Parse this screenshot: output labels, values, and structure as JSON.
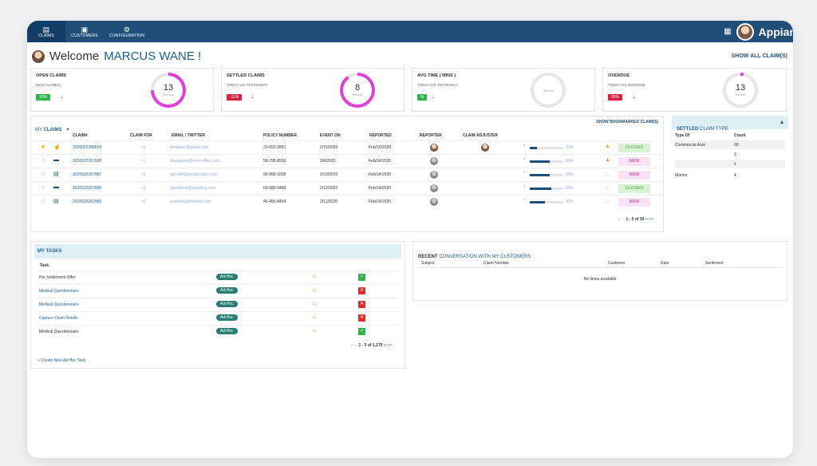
{
  "nav": {
    "tabs": [
      {
        "label": "CLAIMS",
        "icon": "claims-icon"
      },
      {
        "label": "CUSTOMERS",
        "icon": "customers-icon"
      },
      {
        "label": "CONFIGURATION",
        "icon": "configuration-icon"
      }
    ],
    "brand": "Appian"
  },
  "header": {
    "welcome": "Welcome",
    "user_name": "MARCUS WANE !",
    "show_all": "SHOW ALL CLAIM(S)"
  },
  "kpis": [
    {
      "title": "OPEN CLAIMS",
      "subtitle": "NEW CLAIM(S)",
      "badge": "10%",
      "badge_color": "green",
      "trend": "down",
      "value": "13",
      "unit": "Record",
      "ring_pct": 75,
      "ring_color": "#e040d8"
    },
    {
      "title": "SETTLED CLAIMS",
      "subtitle": "TODAY V/S YESTERDAY",
      "badge": "-11%",
      "badge_color": "red",
      "trend": "down",
      "value": "8",
      "unit": "Record",
      "ring_pct": 90,
      "ring_color": "#e040d8"
    },
    {
      "title": "AVG TIME ( MINS )",
      "subtitle": "TODAY V/S YESTERDAY",
      "badge": "%",
      "badge_color": "green",
      "trend": "down",
      "value": "",
      "unit": "Record",
      "ring_pct": 0,
      "ring_color": "#e040d8"
    },
    {
      "title": "OVERDUE",
      "subtitle": "TODAY V/S OVERDUE",
      "badge": "96%",
      "badge_color": "red",
      "trend": "down",
      "value": "13",
      "unit": "Record",
      "ring_pct": 3,
      "ring_color": "#e040d8"
    }
  ],
  "my_claims": {
    "title_prefix": "MY ",
    "title": "CLAIMS",
    "bookmarked_link": "SHOW BOOKMARKED CLAIM(S)",
    "columns": [
      "CLAIM#",
      "CLAIM FOR",
      "EMAIL / TWITTER",
      "POLICY NUMBER",
      "EVENT ON",
      "REPORTED",
      "REPORTER",
      "CLAIM ADJUSTER"
    ],
    "rows": [
      {
        "claim": "2020022288828",
        "claim_for": "+1",
        "email": "beejamin@gmail.com",
        "policy": "23-053-2891",
        "event_on": "2/15/2020",
        "reported": "Feb/15/2020",
        "progress": 22,
        "pct": "22%",
        "status": "CLOSED",
        "warn": true,
        "bookmarked": true
      },
      {
        "claim": "2020022267998",
        "claim_for": "+1",
        "email": "dasajamin@rosecoffee.com",
        "policy": "58-798-8566",
        "event_on": "2/8/2020",
        "reported": "Feb/14/2020",
        "progress": 60,
        "pct": "60%",
        "status": "NEW",
        "warn": true,
        "bookmarked": false
      },
      {
        "claim": "2020022267987",
        "claim_for": "+1",
        "email": "gacodel@bestproduct.com",
        "policy": "90-958-3298",
        "event_on": "2/10/2020",
        "reported": "Feb/14/2020",
        "progress": 60,
        "pct": "60%",
        "status": "NEW",
        "warn": false,
        "bookmarked": false
      },
      {
        "claim": "2020022267986",
        "claim_for": "+1",
        "email": "dauidlavel@amazing.com",
        "policy": "63-680-9468",
        "event_on": "2/12/2020",
        "reported": "Feb/14/2020",
        "progress": 65,
        "pct": "65%",
        "status": "CLOSED",
        "warn": false,
        "bookmarked": false
      },
      {
        "claim": "2020022267983",
        "claim_for": "+1",
        "email": "coasterly@hotmail.com",
        "policy": "46-455-8454",
        "event_on": "2/11/2020",
        "reported": "Feb/14/2020",
        "progress": 45,
        "pct": "45%",
        "status": "NEW",
        "warn": false,
        "bookmarked": false
      }
    ],
    "pager": "1 - 5 of 34"
  },
  "settled_type": {
    "title_a": "SETTLED",
    "title_b": " CLAIM TYPE",
    "columns": [
      "Type Of",
      "Count"
    ],
    "rows": [
      {
        "type": "Commercial Auto",
        "count": "68"
      },
      {
        "type": "",
        "count": "2"
      },
      {
        "type": "",
        "count": "1"
      },
      {
        "type": "Marine",
        "count": "4"
      }
    ]
  },
  "tasks": {
    "title": "MY TASKS",
    "column": "Task",
    "rows": [
      {
        "name": "Pre Settlement Offer",
        "tag": "Ad-Hoc",
        "done": true,
        "link": false
      },
      {
        "name": "Medical Questionnaire",
        "tag": "Ad-Hoc",
        "done": false,
        "link": true
      },
      {
        "name": "Medical Questionnaire",
        "tag": "Ad-Hoc",
        "done": false,
        "link": true
      },
      {
        "name": "Capture Claim Details",
        "tag": "Ad-Hoc",
        "done": false,
        "link": true
      },
      {
        "name": "Medical Questionnaire",
        "tag": "Ad-Hoc",
        "done": true,
        "link": false
      }
    ],
    "pager": "1 - 5 of 1,170",
    "create_link": "+ Create New Ad-Hoc Task"
  },
  "conversation": {
    "title_a": "RECENT",
    "title_b": " CONVERSATION WITH MY CUSTOMERS",
    "columns": [
      "Subject",
      "Claim Number",
      "Customer",
      "Date",
      "Sentiment"
    ],
    "empty": "No items available"
  }
}
